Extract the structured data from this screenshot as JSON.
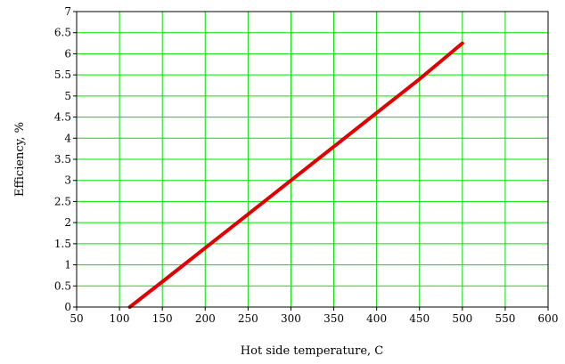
{
  "chart_data": {
    "type": "line",
    "title": "",
    "xlabel": "Hot side temperature, C",
    "ylabel": "Efficiency, %",
    "xlim": [
      50,
      600
    ],
    "ylim": [
      0,
      7
    ],
    "xticks": [
      50,
      100,
      150,
      200,
      250,
      300,
      350,
      400,
      450,
      500,
      550,
      600
    ],
    "yticks": [
      0,
      0.5,
      1,
      1.5,
      2,
      2.5,
      3,
      3.5,
      4,
      4.5,
      5,
      5.5,
      6,
      6.5,
      7
    ],
    "grid": true,
    "series": [
      {
        "color": "#e00000",
        "x": [
          112,
          150,
          200,
          250,
          300,
          350,
          400,
          450,
          500
        ],
        "y": [
          0,
          0.6,
          1.4,
          2.2,
          3.0,
          3.8,
          4.6,
          5.4,
          6.25
        ]
      }
    ],
    "colors": {
      "grid": "#00e000",
      "frame": "#000000"
    }
  }
}
